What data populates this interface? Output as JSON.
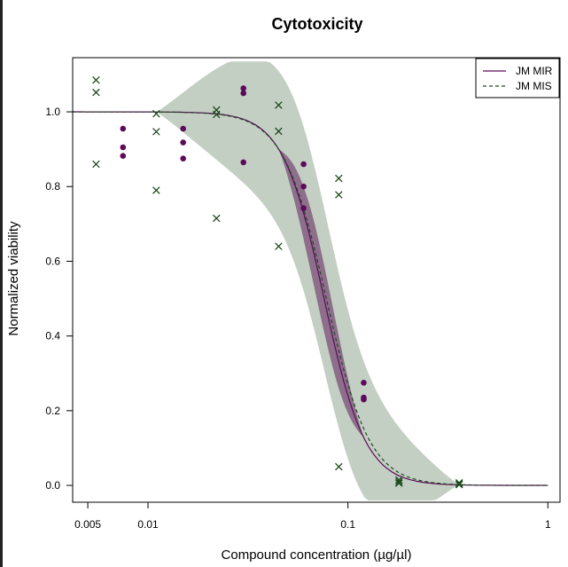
{
  "chart_data": {
    "type": "scatter",
    "title": "Cytotoxicity",
    "xlabel": "Compound concentration (µg/µl)",
    "ylabel": "Normalized viability",
    "x_scale": "log",
    "xlim": [
      0.0042,
      1.15
    ],
    "ylim": [
      -0.045,
      1.145
    ],
    "x_ticks": [
      {
        "value": 0.005,
        "label": "0.005"
      },
      {
        "value": 0.01,
        "label": "0.01"
      },
      {
        "value": 0.1,
        "label": "0.1"
      },
      {
        "value": 1,
        "label": "1"
      }
    ],
    "y_ticks": [
      {
        "value": 0.0,
        "label": "0.0"
      },
      {
        "value": 0.2,
        "label": "0.2"
      },
      {
        "value": 0.4,
        "label": "0.4"
      },
      {
        "value": 0.6,
        "label": "0.6"
      },
      {
        "value": 0.8,
        "label": "0.8"
      },
      {
        "value": 1.0,
        "label": "1.0"
      }
    ],
    "grid": false,
    "legend_position": "top-right",
    "series": [
      {
        "name": "JM MIR",
        "color": "#5c0a5a",
        "line_style": "solid",
        "marker": "dot",
        "band_color": "#7b4f7a",
        "fit": {
          "top": 1.0,
          "bottom": 0.0,
          "ec50": 0.076,
          "hill": 4.2
        },
        "band_range": [
          0.045,
          0.12
        ],
        "points": [
          {
            "x": 0.0075,
            "y": 0.955
          },
          {
            "x": 0.0075,
            "y": 0.905
          },
          {
            "x": 0.0075,
            "y": 0.882
          },
          {
            "x": 0.015,
            "y": 0.955
          },
          {
            "x": 0.015,
            "y": 0.918
          },
          {
            "x": 0.015,
            "y": 0.875
          },
          {
            "x": 0.03,
            "y": 1.063
          },
          {
            "x": 0.03,
            "y": 1.05
          },
          {
            "x": 0.03,
            "y": 0.865
          },
          {
            "x": 0.06,
            "y": 0.86
          },
          {
            "x": 0.06,
            "y": 0.8
          },
          {
            "x": 0.06,
            "y": 0.742
          },
          {
            "x": 0.12,
            "y": 0.275
          },
          {
            "x": 0.12,
            "y": 0.235
          },
          {
            "x": 0.12,
            "y": 0.23
          }
        ]
      },
      {
        "name": "JM MIS",
        "color": "#1e4a1e",
        "line_style": "dashed",
        "marker": "x",
        "band_color": "#c3cfc3",
        "fit": {
          "top": 1.0,
          "bottom": 0.0,
          "ec50": 0.078,
          "hill": 4.0
        },
        "band_range": [
          0.011,
          0.36
        ],
        "points": [
          {
            "x": 0.0055,
            "y": 1.085
          },
          {
            "x": 0.0055,
            "y": 1.052
          },
          {
            "x": 0.0055,
            "y": 0.86
          },
          {
            "x": 0.011,
            "y": 0.995
          },
          {
            "x": 0.011,
            "y": 0.947
          },
          {
            "x": 0.011,
            "y": 0.79
          },
          {
            "x": 0.022,
            "y": 1.005
          },
          {
            "x": 0.022,
            "y": 0.993
          },
          {
            "x": 0.022,
            "y": 0.715
          },
          {
            "x": 0.045,
            "y": 1.018
          },
          {
            "x": 0.045,
            "y": 0.948
          },
          {
            "x": 0.045,
            "y": 0.64
          },
          {
            "x": 0.09,
            "y": 0.822
          },
          {
            "x": 0.09,
            "y": 0.778
          },
          {
            "x": 0.09,
            "y": 0.05
          },
          {
            "x": 0.18,
            "y": 0.015
          },
          {
            "x": 0.18,
            "y": 0.01
          },
          {
            "x": 0.18,
            "y": 0.006
          },
          {
            "x": 0.36,
            "y": 0.007
          },
          {
            "x": 0.36,
            "y": 0.004
          },
          {
            "x": 0.36,
            "y": 0.002
          }
        ]
      }
    ]
  }
}
